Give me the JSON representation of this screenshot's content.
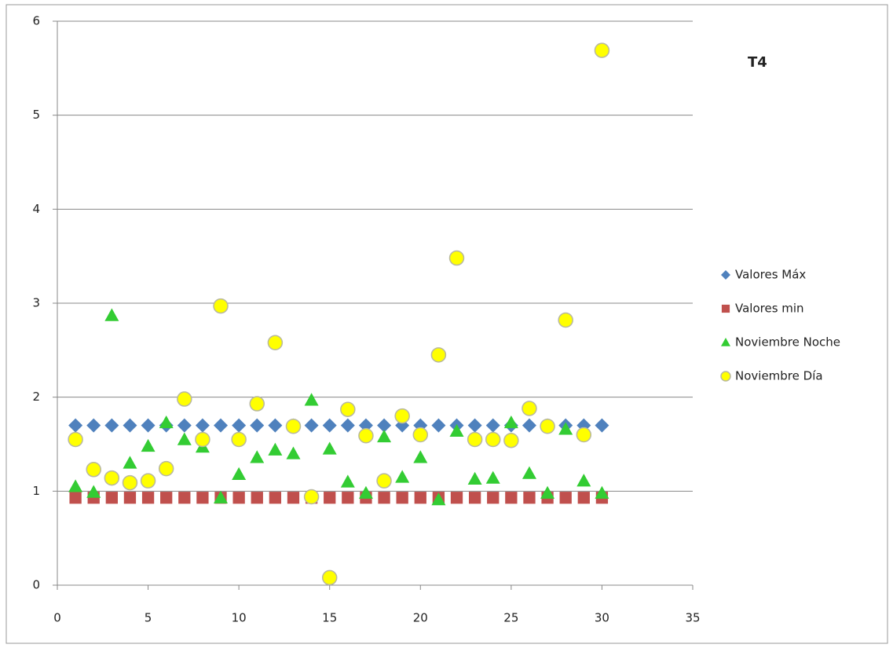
{
  "chart_data": {
    "type": "scatter",
    "title": "T4",
    "x": [
      1,
      2,
      3,
      4,
      5,
      6,
      7,
      8,
      9,
      10,
      11,
      12,
      13,
      14,
      15,
      16,
      17,
      18,
      19,
      20,
      21,
      22,
      23,
      24,
      25,
      26,
      27,
      28,
      29,
      30
    ],
    "series": [
      {
        "name": "Valores Máx",
        "color": "#4f81bd",
        "marker": "diamond",
        "values": [
          1.7,
          1.7,
          1.7,
          1.7,
          1.7,
          1.7,
          1.7,
          1.7,
          1.7,
          1.7,
          1.7,
          1.7,
          1.7,
          1.7,
          1.7,
          1.7,
          1.7,
          1.7,
          1.7,
          1.7,
          1.7,
          1.7,
          1.7,
          1.7,
          1.7,
          1.7,
          1.7,
          1.7,
          1.7,
          1.7
        ]
      },
      {
        "name": "Valores min",
        "color": "#c0504d",
        "marker": "square",
        "values": [
          0.93,
          0.93,
          0.93,
          0.93,
          0.93,
          0.93,
          0.93,
          0.93,
          0.93,
          0.93,
          0.93,
          0.93,
          0.93,
          0.93,
          0.93,
          0.93,
          0.93,
          0.93,
          0.93,
          0.93,
          0.93,
          0.93,
          0.93,
          0.93,
          0.93,
          0.93,
          0.93,
          0.93,
          0.93,
          0.93
        ]
      },
      {
        "name": "Noviembre Noche",
        "color": "#33cc33",
        "marker": "triangle",
        "values": [
          1.05,
          0.99,
          2.87,
          1.3,
          1.48,
          1.73,
          1.55,
          1.47,
          0.93,
          1.18,
          1.36,
          1.44,
          1.4,
          1.97,
          1.45,
          1.1,
          0.98,
          1.58,
          1.15,
          1.36,
          0.91,
          1.64,
          1.13,
          1.14,
          1.73,
          1.19,
          0.98,
          1.66,
          1.11,
          0.98
        ]
      },
      {
        "name": "Noviembre Día",
        "color": "#ffff00",
        "marker": "circle",
        "values": [
          1.55,
          1.23,
          1.14,
          1.09,
          1.11,
          1.24,
          1.98,
          1.55,
          2.97,
          1.55,
          1.93,
          2.58,
          1.69,
          0.94,
          0.08,
          1.87,
          1.59,
          1.11,
          1.8,
          1.6,
          2.45,
          3.48,
          1.55,
          1.55,
          1.54,
          1.88,
          1.69,
          2.82,
          1.6,
          5.69
        ]
      }
    ],
    "xlim": [
      0,
      35
    ],
    "xticks": [
      0,
      5,
      10,
      15,
      20,
      25,
      30,
      35
    ],
    "ylim": [
      0,
      6
    ],
    "yticks": [
      0,
      1,
      2,
      3,
      4,
      5,
      6
    ],
    "grid": true,
    "legend": "right"
  }
}
